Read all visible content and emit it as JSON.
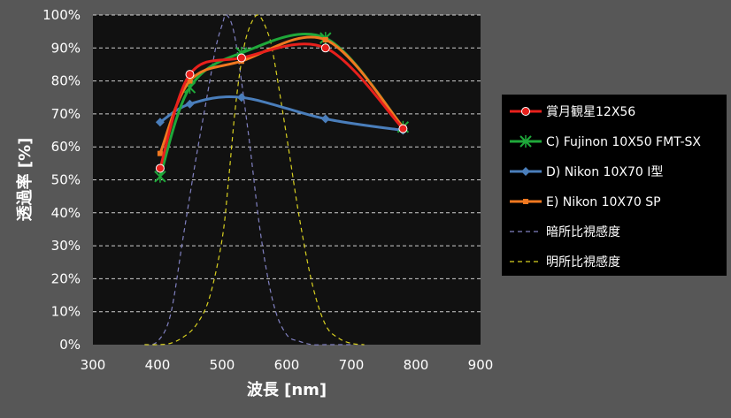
{
  "chart_data": {
    "type": "line",
    "xlabel": "波長 [nm]",
    "ylabel": "透過率 [%]",
    "xlim": [
      300,
      900
    ],
    "ylim": [
      0,
      100
    ],
    "x_ticks": [
      "300",
      "400",
      "500",
      "600",
      "700",
      "800",
      "900"
    ],
    "y_ticks": [
      "0%",
      "10%",
      "20%",
      "30%",
      "40%",
      "50%",
      "60%",
      "70%",
      "80%",
      "90%",
      "100%"
    ],
    "grid": "horizontal dashed",
    "legend_position": "right",
    "series": [
      {
        "name": "賞月観星12X56",
        "color": "#e8201c",
        "marker": "circle",
        "x": [
          404,
          450,
          530,
          660,
          780
        ],
        "y": [
          53.5,
          82,
          87,
          90,
          65.5
        ]
      },
      {
        "name": "C) Fujinon 10X50 FMT-SX",
        "color": "#1fa83a",
        "marker": "x-star",
        "x": [
          404,
          450,
          530,
          660,
          780
        ],
        "y": [
          51,
          78,
          88.5,
          93,
          66
        ]
      },
      {
        "name": "D) Nikon 10X70 Ⅰ型",
        "color": "#4a7ebb",
        "marker": "diamond",
        "x": [
          404,
          450,
          530,
          660,
          780
        ],
        "y": [
          67.5,
          73,
          75,
          68.5,
          65
        ]
      },
      {
        "name": "E) Nikon 10X70 SP",
        "color": "#f07820",
        "marker": "square",
        "x": [
          404,
          450,
          530,
          660,
          780
        ],
        "y": [
          58,
          80,
          86,
          92.5,
          66
        ]
      },
      {
        "name": "暗所比視感度",
        "color": "#8080c0",
        "marker": "none",
        "dashed": true,
        "x": [
          380,
          400,
          420,
          440,
          460,
          480,
          490,
          500,
          507,
          520,
          540,
          560,
          580,
          600,
          620,
          640,
          660,
          680,
          700
        ],
        "y": [
          0,
          1,
          9,
          33,
          57,
          79,
          90,
          97,
          100,
          93,
          65,
          33,
          12,
          3,
          1,
          0,
          0,
          0,
          0
        ]
      },
      {
        "name": "明所比視感度",
        "color": "#d8d020",
        "marker": "none",
        "dashed": true,
        "x": [
          380,
          400,
          420,
          440,
          460,
          480,
          500,
          510,
          520,
          530,
          540,
          555,
          570,
          580,
          600,
          620,
          640,
          660,
          680,
          700,
          720
        ],
        "y": [
          0,
          0,
          0.4,
          2.3,
          6,
          14,
          32,
          50,
          71,
          86,
          95,
          100,
          95,
          87,
          63,
          38,
          18,
          6,
          2,
          0.4,
          0
        ]
      }
    ]
  }
}
